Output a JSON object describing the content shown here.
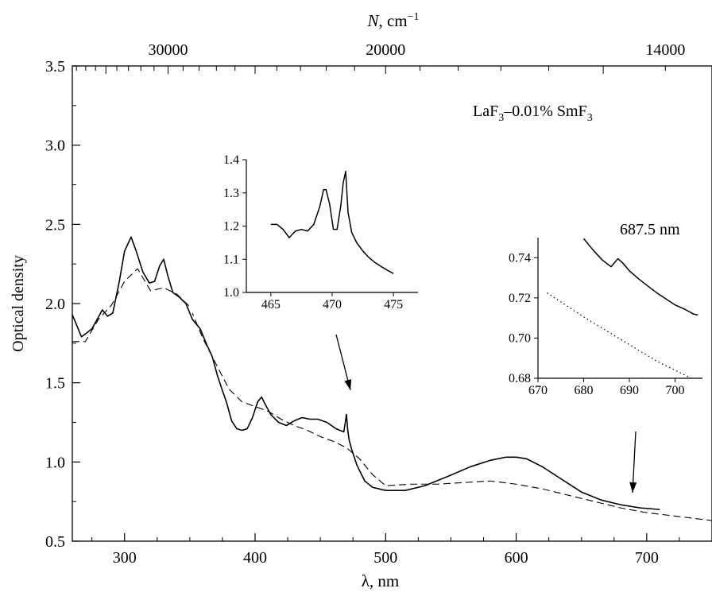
{
  "chart_data": [
    {
      "type": "line",
      "role": "main",
      "xlabel_prefix": "λ",
      "xlabel_suffix": ", nm",
      "ylabel": "Optical density",
      "top_axis_label_var": "N",
      "top_axis_label_unit": ", cm",
      "top_axis_label_exp": "−1",
      "xlim": [
        260,
        750
      ],
      "ylim": [
        0.5,
        3.5
      ],
      "x_ticks": [
        300,
        400,
        500,
        600,
        700
      ],
      "y_ticks": [
        0.5,
        1.0,
        1.5,
        2.0,
        2.5,
        3.0,
        3.5
      ],
      "y_tick_labels": [
        "0.5",
        "1.0",
        "1.5",
        "2.0",
        "2.5",
        "3.0",
        "3.5"
      ],
      "top_ticks": [
        {
          "wavenumber": 30000,
          "label": "30000"
        },
        {
          "wavenumber": 20000,
          "label": "20000"
        },
        {
          "wavenumber": 14000,
          "label": "14000"
        }
      ],
      "annotation": {
        "base": "LaF",
        "sub1": "3",
        "mid": "–0.01% SmF",
        "sub2": "3"
      },
      "series": [
        {
          "style": "solid",
          "x": [
            260,
            267,
            275,
            283,
            287,
            291,
            296,
            300,
            305,
            309,
            314,
            319,
            323,
            327,
            330,
            333,
            337,
            342,
            347,
            352,
            358,
            363,
            367,
            371,
            375,
            378,
            382,
            386,
            390,
            394,
            398,
            402,
            405,
            408,
            412,
            418,
            424,
            430,
            436,
            442,
            448,
            455,
            462,
            468,
            470,
            471,
            472,
            474,
            478,
            484,
            490,
            500,
            515,
            530,
            548,
            565,
            580,
            592,
            600,
            608,
            620,
            635,
            650,
            665,
            680,
            695,
            710
          ],
          "y": [
            1.93,
            1.79,
            1.84,
            1.96,
            1.92,
            1.94,
            2.14,
            2.33,
            2.42,
            2.33,
            2.2,
            2.13,
            2.14,
            2.24,
            2.28,
            2.18,
            2.07,
            2.04,
            2.0,
            1.9,
            1.84,
            1.74,
            1.67,
            1.55,
            1.45,
            1.38,
            1.26,
            1.21,
            1.2,
            1.21,
            1.28,
            1.38,
            1.41,
            1.36,
            1.3,
            1.25,
            1.23,
            1.26,
            1.28,
            1.27,
            1.27,
            1.25,
            1.21,
            1.19,
            1.3,
            1.2,
            1.14,
            1.08,
            0.98,
            0.88,
            0.84,
            0.82,
            0.82,
            0.85,
            0.91,
            0.97,
            1.01,
            1.03,
            1.03,
            1.02,
            0.97,
            0.89,
            0.81,
            0.76,
            0.73,
            0.71,
            0.7
          ]
        },
        {
          "style": "dashed",
          "x": [
            260,
            270,
            280,
            290,
            300,
            310,
            320,
            330,
            340,
            350,
            360,
            370,
            380,
            390,
            400,
            410,
            420,
            430,
            440,
            450,
            460,
            470,
            480,
            490,
            500,
            520,
            540,
            560,
            580,
            600,
            620,
            640,
            660,
            680,
            700,
            720,
            740,
            750
          ],
          "y": [
            1.76,
            1.76,
            1.9,
            1.99,
            2.14,
            2.22,
            2.08,
            2.1,
            2.06,
            1.98,
            1.78,
            1.62,
            1.46,
            1.38,
            1.35,
            1.32,
            1.27,
            1.23,
            1.2,
            1.16,
            1.13,
            1.09,
            1.02,
            0.92,
            0.85,
            0.86,
            0.86,
            0.87,
            0.88,
            0.86,
            0.83,
            0.79,
            0.75,
            0.71,
            0.68,
            0.66,
            0.64,
            0.63
          ]
        }
      ]
    },
    {
      "type": "line",
      "role": "inset-left",
      "xlim": [
        463,
        477
      ],
      "ylim": [
        1.0,
        1.4
      ],
      "x_ticks": [
        465,
        470,
        475
      ],
      "y_ticks": [
        1.0,
        1.1,
        1.2,
        1.3,
        1.4
      ],
      "y_tick_labels": [
        "1.0",
        "1.1",
        "1.2",
        "1.3",
        "1.4"
      ],
      "series": [
        {
          "style": "solid",
          "x": [
            465.0,
            465.5,
            466.0,
            466.5,
            467.0,
            467.5,
            468.0,
            468.5,
            469.0,
            469.3,
            469.5,
            469.8,
            470.1,
            470.4,
            470.7,
            470.9,
            471.1,
            471.3,
            471.6,
            472.0,
            472.5,
            473.0,
            473.5,
            474.0,
            474.5,
            475.0
          ],
          "y": [
            1.205,
            1.205,
            1.19,
            1.165,
            1.185,
            1.19,
            1.185,
            1.205,
            1.26,
            1.31,
            1.31,
            1.265,
            1.19,
            1.19,
            1.26,
            1.33,
            1.365,
            1.24,
            1.18,
            1.15,
            1.125,
            1.105,
            1.09,
            1.078,
            1.067,
            1.057
          ]
        }
      ]
    },
    {
      "type": "line",
      "role": "inset-right",
      "annotation": "687.5 nm",
      "xlim": [
        670,
        706
      ],
      "ylim": [
        0.68,
        0.75
      ],
      "x_ticks": [
        670,
        680,
        690,
        700
      ],
      "y_ticks": [
        0.68,
        0.7,
        0.72,
        0.74
      ],
      "y_tick_labels": [
        "0.68",
        "0.70",
        "0.72",
        "0.74"
      ],
      "series": [
        {
          "style": "solid",
          "x": [
            680,
            682,
            684,
            686,
            687.5,
            688.5,
            690,
            692,
            694,
            696,
            698,
            700,
            702,
            704,
            705
          ],
          "y": [
            0.7495,
            0.744,
            0.739,
            0.7355,
            0.7395,
            0.7375,
            0.7335,
            0.7295,
            0.726,
            0.7225,
            0.7195,
            0.7165,
            0.7145,
            0.712,
            0.7115
          ]
        },
        {
          "style": "dotted",
          "x": [
            672,
            676,
            680,
            684,
            688,
            692,
            696,
            700,
            704
          ],
          "y": [
            0.7225,
            0.7165,
            0.7105,
            0.705,
            0.6995,
            0.694,
            0.6885,
            0.684,
            0.6795
          ]
        }
      ]
    }
  ]
}
